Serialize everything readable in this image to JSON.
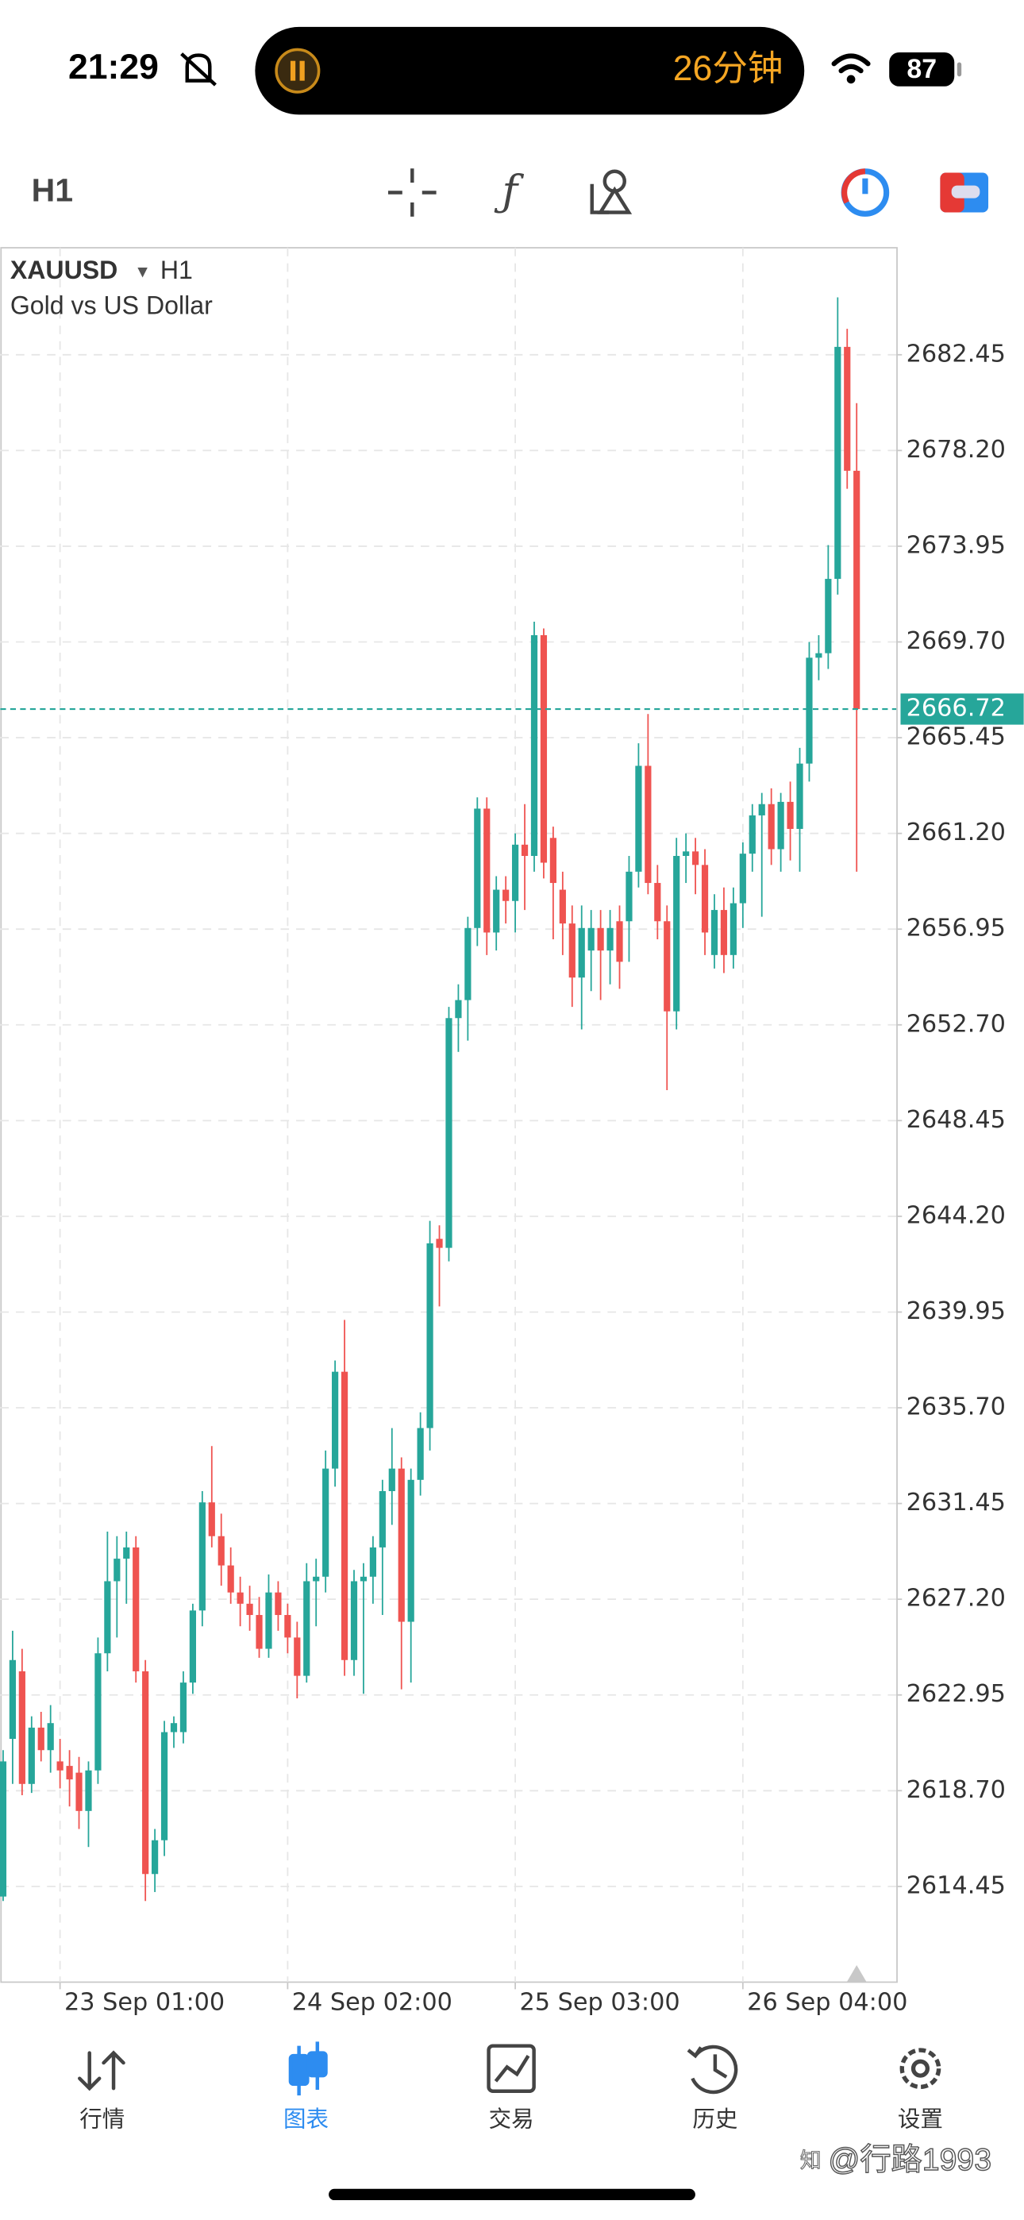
{
  "status_bar": {
    "time": "21:29",
    "timer": "26分钟",
    "battery": "87"
  },
  "toolbar": {
    "timeframe": "H1"
  },
  "chart_data": {
    "type": "candlestick",
    "symbol": "XAUUSD",
    "timeframe": "H1",
    "subtitle": "Gold vs US Dollar",
    "up_color": "#26a69a",
    "down_color": "#ef5350",
    "grid": true,
    "ylim": [
      2610.2,
      2687.2
    ],
    "yticks": [
      2682.45,
      {
        "value": 2678.2,
        "label": "2678.20"
      },
      2673.95,
      {
        "value": 2669.7,
        "label": "2669.70"
      },
      2665.45,
      {
        "value": 2661.2,
        "label": "2661.20"
      },
      2656.95,
      {
        "value": 2652.7,
        "label": "2652.70"
      },
      2648.45,
      {
        "value": 2644.2,
        "label": "2644.20"
      },
      2639.95,
      {
        "value": 2635.7,
        "label": "2635.70"
      },
      2631.45,
      {
        "value": 2627.2,
        "label": "2627.20"
      },
      2622.95,
      {
        "value": 2618.7,
        "label": "2618.70"
      },
      2614.45
    ],
    "xticks": [
      {
        "value": 6,
        "label": "23 Sep 01:00"
      },
      {
        "value": 30,
        "label": "24 Sep 02:00"
      },
      {
        "value": 54,
        "label": "25 Sep 03:00"
      },
      {
        "value": 78,
        "label": "26 Sep 04:00"
      }
    ],
    "last_price": 2666.72,
    "open": [
      2614.0,
      2621.0,
      2624.0,
      2619.0,
      2621.5,
      2620.5,
      2620.0,
      2619.8,
      2619.5,
      2617.8,
      2619.6,
      2624.8,
      2628.0,
      2629.0,
      2629.5,
      2624.0,
      2615.0,
      2616.5,
      2621.3,
      2621.3,
      2623.5,
      2626.7,
      2631.5,
      2630.0,
      2628.7,
      2627.5,
      2627.0,
      2626.5,
      2625.0,
      2627.5,
      2626.5,
      2625.5,
      2623.8,
      2628.0,
      2628.2,
      2633.0,
      2637.3,
      2624.5,
      2628.0,
      2628.2,
      2629.5,
      2632.0,
      2633.0,
      2626.2,
      2632.5,
      2634.8,
      2643.2,
      2642.8,
      2653.0,
      2653.8,
      2657.0,
      2662.3,
      2656.8,
      2658.7,
      2658.2,
      2660.7,
      2660.2,
      2670.0,
      2661.0,
      2658.7,
      2657.2,
      2654.8,
      2656.0,
      2657.0,
      2656.0,
      2657.3,
      2657.3,
      2659.5,
      2664.2,
      2659.0,
      2657.3,
      2653.3,
      2660.2,
      2660.4,
      2659.8,
      2655.8,
      2657.8,
      2655.8,
      2658.1,
      2660.3,
      2662.0,
      2662.5,
      2660.5,
      2662.6,
      2661.4,
      2664.3,
      2669.0,
      2669.2,
      2672.5,
      2682.8,
      2677.3
    ],
    "high": [
      2620.5,
      2625.8,
      2625.0,
      2622.0,
      2622.2,
      2622.5,
      2621.0,
      2620.5,
      2620.2,
      2620.0,
      2625.5,
      2630.2,
      2630.0,
      2630.2,
      2630.0,
      2624.5,
      2617.0,
      2621.8,
      2622.0,
      2624.0,
      2627.0,
      2632.0,
      2634.0,
      2631.0,
      2629.5,
      2628.2,
      2627.8,
      2627.3,
      2628.3,
      2628.0,
      2627.0,
      2626.2,
      2628.8,
      2629.0,
      2633.8,
      2637.8,
      2639.6,
      2628.5,
      2628.8,
      2630.0,
      2632.5,
      2634.8,
      2633.5,
      2633.0,
      2635.5,
      2644.0,
      2643.8,
      2653.5,
      2654.5,
      2657.5,
      2662.8,
      2662.8,
      2659.3,
      2659.3,
      2661.2,
      2662.5,
      2670.6,
      2670.3,
      2661.5,
      2659.5,
      2658.0,
      2658.0,
      2657.8,
      2657.8,
      2657.8,
      2658.0,
      2660.2,
      2665.2,
      2666.5,
      2659.8,
      2658.0,
      2661.0,
      2661.2,
      2661.0,
      2660.5,
      2658.5,
      2658.8,
      2658.8,
      2660.8,
      2662.5,
      2663.0,
      2663.2,
      2663.0,
      2663.5,
      2665.0,
      2669.7,
      2670.0,
      2674.0,
      2685.0,
      2683.6,
      2680.3
    ],
    "low": [
      2613.8,
      2619.0,
      2618.5,
      2618.6,
      2620.0,
      2619.5,
      2618.8,
      2618.0,
      2617.0,
      2616.2,
      2619.0,
      2624.0,
      2625.5,
      2627.0,
      2623.5,
      2613.8,
      2614.2,
      2615.8,
      2620.6,
      2620.8,
      2623.0,
      2626.0,
      2629.5,
      2627.8,
      2627.0,
      2626.0,
      2625.8,
      2624.6,
      2624.6,
      2625.8,
      2624.8,
      2622.8,
      2623.5,
      2626.0,
      2627.5,
      2632.2,
      2623.8,
      2623.8,
      2623.0,
      2627.0,
      2626.5,
      2630.5,
      2623.2,
      2623.5,
      2631.8,
      2633.8,
      2640.2,
      2642.2,
      2651.5,
      2652.0,
      2656.2,
      2655.8,
      2656.0,
      2657.2,
      2656.8,
      2657.8,
      2659.5,
      2659.2,
      2656.5,
      2655.8,
      2653.5,
      2652.5,
      2654.2,
      2653.8,
      2654.5,
      2654.3,
      2655.5,
      2658.8,
      2658.5,
      2656.5,
      2649.8,
      2652.5,
      2659.0,
      2658.5,
      2655.8,
      2655.2,
      2655.0,
      2655.2,
      2657.0,
      2659.5,
      2657.5,
      2659.8,
      2659.5,
      2660.0,
      2659.5,
      2663.5,
      2668.0,
      2668.5,
      2671.8,
      2676.5,
      2659.5
    ],
    "close": [
      2620.0,
      2624.5,
      2619.0,
      2621.5,
      2620.5,
      2621.7,
      2619.6,
      2619.2,
      2617.8,
      2619.6,
      2624.8,
      2628.0,
      2629.0,
      2629.5,
      2624.0,
      2615.0,
      2616.5,
      2621.3,
      2621.7,
      2623.5,
      2626.7,
      2631.5,
      2630.0,
      2628.7,
      2627.5,
      2627.0,
      2626.5,
      2625.0,
      2627.5,
      2626.5,
      2625.5,
      2623.8,
      2628.0,
      2628.2,
      2633.0,
      2637.3,
      2624.5,
      2628.0,
      2628.2,
      2629.5,
      2632.0,
      2633.0,
      2626.2,
      2632.5,
      2634.8,
      2643.0,
      2642.8,
      2653.0,
      2653.8,
      2657.0,
      2662.3,
      2656.8,
      2658.7,
      2658.2,
      2660.7,
      2660.2,
      2670.0,
      2659.9,
      2659.0,
      2657.2,
      2654.8,
      2657.0,
      2657.0,
      2656.0,
      2657.0,
      2655.5,
      2659.5,
      2664.2,
      2659.0,
      2657.3,
      2653.3,
      2660.2,
      2660.4,
      2659.8,
      2656.8,
      2657.8,
      2655.8,
      2658.1,
      2660.3,
      2662.0,
      2662.5,
      2660.5,
      2662.6,
      2661.4,
      2664.3,
      2669.0,
      2669.2,
      2672.5,
      2682.8,
      2677.3,
      2666.72
    ]
  },
  "tab_bar": {
    "tabs": [
      "行情",
      "图表",
      "交易",
      "历史",
      "设置"
    ],
    "active": 1
  },
  "watermark": "@行路1993"
}
